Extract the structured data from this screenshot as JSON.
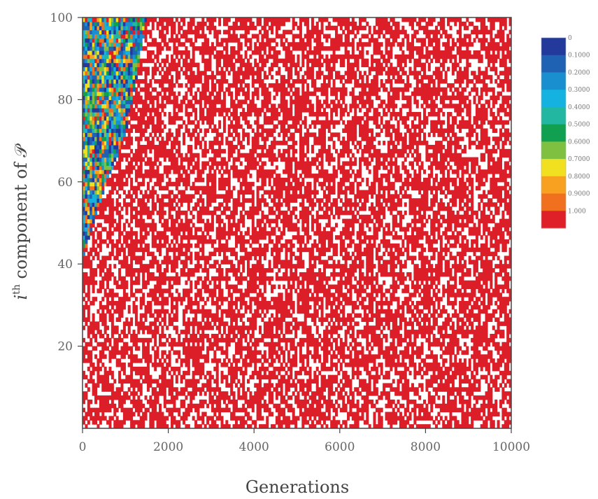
{
  "chart_data": {
    "type": "heatmap",
    "xlabel": "Generations",
    "ylabel_prefix": "i",
    "ylabel_superscript": "th",
    "ylabel_suffix": " component of 𝒫",
    "xlim": [
      0,
      10000
    ],
    "ylim": [
      0,
      100
    ],
    "xticks": [
      0,
      2000,
      4000,
      6000,
      8000,
      10000
    ],
    "yticks": [
      20,
      40,
      60,
      80,
      100
    ],
    "grid": false,
    "legend_position": "right",
    "colorbar": {
      "labels": [
        "0",
        "0.1000",
        "0.2000",
        "0.3000",
        "0.4000",
        "0.5000",
        "0.6000",
        "0.7000",
        "0.8000",
        "0.9000",
        "1.000"
      ],
      "colors": [
        "#233a9c",
        "#1f62b4",
        "#1a8fd0",
        "#14b2e0",
        "#22b7a0",
        "#10a050",
        "#7fc040",
        "#f0e020",
        "#f8a020",
        "#f07020",
        "#e02028"
      ]
    },
    "converged_value": 1.0,
    "sparse_color": "#ffffff",
    "converged_color": "#dc1e28",
    "transition_boundary": {
      "generations": [
        0,
        300,
        650,
        1000,
        1250,
        1500
      ],
      "component": [
        41,
        52,
        62,
        72,
        85,
        100
      ]
    }
  }
}
